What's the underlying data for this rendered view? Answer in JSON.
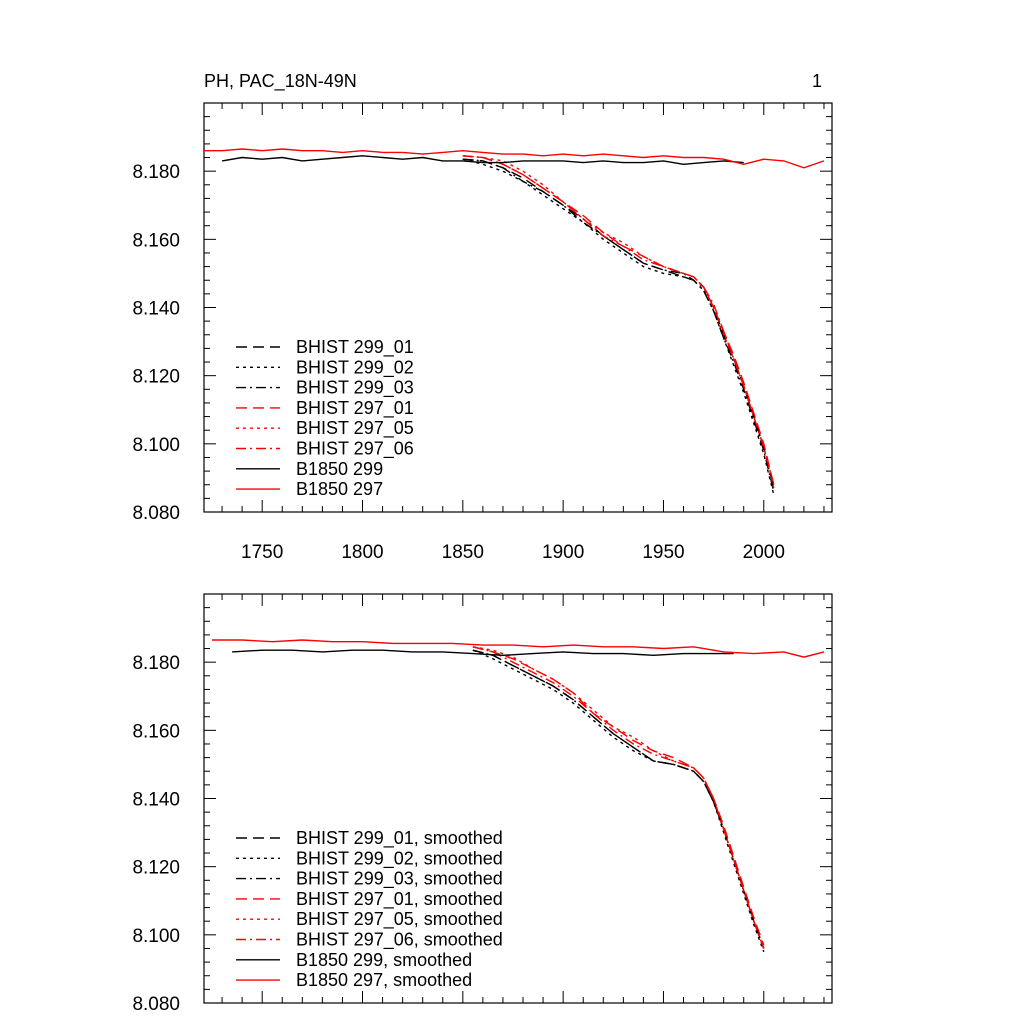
{
  "title": "PH, PAC_18N-49N",
  "page_number": "1",
  "chart_data": [
    {
      "type": "line",
      "panel": "top",
      "title": "PH, PAC_18N-49N",
      "xlabel": "",
      "ylabel": "",
      "xlim": [
        1721,
        2034
      ],
      "ylim": [
        8.08,
        8.2
      ],
      "x_ticks": [
        1750,
        1800,
        1850,
        1900,
        1950,
        2000
      ],
      "x_tick_labels": [
        "1750",
        "1800",
        "1850",
        "1900",
        "1950",
        "2000"
      ],
      "y_ticks": [
        8.08,
        8.1,
        8.12,
        8.14,
        8.16,
        8.18
      ],
      "y_tick_labels": [
        "8.080",
        "8.100",
        "8.120",
        "8.140",
        "8.160",
        "8.180"
      ],
      "legend_position": "bottom-left",
      "smoothed": false,
      "series": [
        {
          "name": "BHIST 299_01",
          "color": "#000000",
          "dash": "long-dash",
          "x": [
            1850,
            1860,
            1870,
            1880,
            1890,
            1900,
            1910,
            1920,
            1930,
            1940,
            1950,
            1960,
            1965,
            1970,
            1975,
            1980,
            1985,
            1990,
            1995,
            2000,
            2005
          ],
          "values": [
            8.1835,
            8.183,
            8.181,
            8.178,
            8.174,
            8.17,
            8.166,
            8.161,
            8.157,
            8.153,
            8.151,
            8.149,
            8.148,
            8.146,
            8.14,
            8.132,
            8.125,
            8.117,
            8.108,
            8.099,
            8.087
          ]
        },
        {
          "name": "BHIST 299_02",
          "color": "#000000",
          "dash": "dot",
          "x": [
            1850,
            1860,
            1870,
            1880,
            1890,
            1900,
            1910,
            1920,
            1930,
            1940,
            1950,
            1960,
            1965,
            1970,
            1975,
            1980,
            1985,
            1990,
            1995,
            2000,
            2005
          ],
          "values": [
            8.1835,
            8.182,
            8.18,
            8.177,
            8.173,
            8.169,
            8.165,
            8.16,
            8.156,
            8.152,
            8.15,
            8.149,
            8.148,
            8.145,
            8.139,
            8.131,
            8.123,
            8.115,
            8.106,
            8.097,
            8.085
          ]
        },
        {
          "name": "BHIST 299_03",
          "color": "#000000",
          "dash": "dash-dot",
          "x": [
            1850,
            1860,
            1870,
            1880,
            1890,
            1900,
            1910,
            1920,
            1930,
            1940,
            1950,
            1960,
            1965,
            1970,
            1975,
            1980,
            1985,
            1990,
            1995,
            2000,
            2005
          ],
          "values": [
            8.1835,
            8.183,
            8.181,
            8.177,
            8.174,
            8.17,
            8.165,
            8.161,
            8.157,
            8.153,
            8.151,
            8.15,
            8.148,
            8.145,
            8.139,
            8.131,
            8.124,
            8.116,
            8.107,
            8.098,
            8.086
          ]
        },
        {
          "name": "BHIST 297_01",
          "color": "#ff0000",
          "dash": "long-dash",
          "x": [
            1850,
            1860,
            1870,
            1880,
            1890,
            1900,
            1910,
            1920,
            1930,
            1940,
            1950,
            1960,
            1965,
            1970,
            1975,
            1980,
            1985,
            1990,
            1995,
            2000,
            2005
          ],
          "values": [
            8.1845,
            8.184,
            8.182,
            8.179,
            8.175,
            8.171,
            8.167,
            8.162,
            8.158,
            8.155,
            8.152,
            8.15,
            8.149,
            8.146,
            8.14,
            8.133,
            8.126,
            8.118,
            8.109,
            8.1,
            8.088
          ]
        },
        {
          "name": "BHIST 297_05",
          "color": "#ff0000",
          "dash": "dot",
          "x": [
            1850,
            1860,
            1870,
            1880,
            1890,
            1900,
            1910,
            1920,
            1930,
            1940,
            1950,
            1960,
            1965,
            1970,
            1975,
            1980,
            1985,
            1990,
            1995,
            2000,
            2005
          ],
          "values": [
            8.1845,
            8.184,
            8.183,
            8.18,
            8.176,
            8.171,
            8.166,
            8.162,
            8.159,
            8.155,
            8.152,
            8.15,
            8.149,
            8.146,
            8.14,
            8.132,
            8.125,
            8.117,
            8.108,
            8.099,
            8.087
          ]
        },
        {
          "name": "BHIST 297_06",
          "color": "#ff0000",
          "dash": "dash-dot",
          "x": [
            1850,
            1860,
            1870,
            1880,
            1890,
            1900,
            1910,
            1920,
            1930,
            1940,
            1950,
            1960,
            1965,
            1970,
            1975,
            1980,
            1985,
            1990,
            1995,
            2000,
            2005
          ],
          "values": [
            8.1845,
            8.184,
            8.182,
            8.179,
            8.175,
            8.171,
            8.166,
            8.161,
            8.158,
            8.154,
            8.152,
            8.15,
            8.149,
            8.146,
            8.141,
            8.133,
            8.125,
            8.117,
            8.108,
            8.099,
            8.088
          ]
        },
        {
          "name": "B1850 299",
          "color": "#000000",
          "dash": "solid",
          "x": [
            1730,
            1740,
            1750,
            1760,
            1770,
            1780,
            1790,
            1800,
            1810,
            1820,
            1830,
            1840,
            1850,
            1860,
            1870,
            1880,
            1890,
            1900,
            1910,
            1920,
            1930,
            1940,
            1950,
            1960,
            1970,
            1980,
            1990
          ],
          "values": [
            8.183,
            8.184,
            8.1835,
            8.184,
            8.183,
            8.1835,
            8.184,
            8.1845,
            8.184,
            8.1835,
            8.184,
            8.183,
            8.183,
            8.1825,
            8.1825,
            8.183,
            8.183,
            8.183,
            8.1825,
            8.183,
            8.1825,
            8.1825,
            8.183,
            8.182,
            8.1825,
            8.183,
            8.1825
          ]
        },
        {
          "name": "B1850 297",
          "color": "#ff0000",
          "dash": "solid",
          "x": [
            1721,
            1730,
            1740,
            1750,
            1760,
            1770,
            1780,
            1790,
            1800,
            1810,
            1820,
            1830,
            1840,
            1850,
            1860,
            1870,
            1880,
            1890,
            1900,
            1910,
            1920,
            1930,
            1940,
            1950,
            1960,
            1970,
            1980,
            1990,
            2000,
            2010,
            2020,
            2030
          ],
          "values": [
            8.186,
            8.186,
            8.1865,
            8.186,
            8.1865,
            8.186,
            8.186,
            8.1855,
            8.186,
            8.1855,
            8.1855,
            8.185,
            8.1855,
            8.186,
            8.1855,
            8.185,
            8.185,
            8.1845,
            8.185,
            8.1845,
            8.185,
            8.1845,
            8.184,
            8.1845,
            8.184,
            8.184,
            8.1835,
            8.182,
            8.1835,
            8.183,
            8.181,
            8.183
          ]
        }
      ]
    },
    {
      "type": "line",
      "panel": "bottom",
      "title": "",
      "xlabel": "",
      "ylabel": "",
      "xlim": [
        1721,
        2034
      ],
      "ylim": [
        8.08,
        8.2
      ],
      "x_ticks": [
        1750,
        1800,
        1850,
        1900,
        1950,
        2000
      ],
      "x_tick_labels": [],
      "y_ticks": [
        8.08,
        8.1,
        8.12,
        8.14,
        8.16,
        8.18
      ],
      "y_tick_labels": [
        "8.080",
        "8.100",
        "8.120",
        "8.140",
        "8.160",
        "8.180"
      ],
      "legend_position": "bottom-left",
      "smoothed": true,
      "series": [
        {
          "name": "BHIST 299_01, smoothed",
          "color": "#000000",
          "dash": "long-dash",
          "x": [
            1855,
            1865,
            1875,
            1885,
            1895,
            1905,
            1915,
            1925,
            1935,
            1945,
            1955,
            1965,
            1970,
            1975,
            1980,
            1985,
            1990,
            1995,
            2000
          ],
          "values": [
            8.1835,
            8.182,
            8.179,
            8.176,
            8.173,
            8.169,
            8.164,
            8.159,
            8.155,
            8.151,
            8.15,
            8.148,
            8.145,
            8.139,
            8.131,
            8.122,
            8.113,
            8.104,
            8.096
          ]
        },
        {
          "name": "BHIST 299_02, smoothed",
          "color": "#000000",
          "dash": "dot",
          "x": [
            1855,
            1865,
            1875,
            1885,
            1895,
            1905,
            1915,
            1925,
            1935,
            1945,
            1955,
            1965,
            1970,
            1975,
            1980,
            1985,
            1990,
            1995,
            2000
          ],
          "values": [
            8.1835,
            8.181,
            8.178,
            8.175,
            8.172,
            8.168,
            8.163,
            8.158,
            8.154,
            8.151,
            8.15,
            8.148,
            8.145,
            8.139,
            8.13,
            8.121,
            8.112,
            8.103,
            8.095
          ]
        },
        {
          "name": "BHIST 299_03, smoothed",
          "color": "#000000",
          "dash": "dash-dot",
          "x": [
            1855,
            1865,
            1875,
            1885,
            1895,
            1905,
            1915,
            1925,
            1935,
            1945,
            1955,
            1965,
            1970,
            1975,
            1980,
            1985,
            1990,
            1995,
            2000
          ],
          "values": [
            8.1835,
            8.182,
            8.179,
            8.176,
            8.173,
            8.169,
            8.164,
            8.159,
            8.155,
            8.151,
            8.15,
            8.148,
            8.145,
            8.139,
            8.131,
            8.122,
            8.113,
            8.104,
            8.096
          ]
        },
        {
          "name": "BHIST 297_01, smoothed",
          "color": "#ff0000",
          "dash": "long-dash",
          "x": [
            1855,
            1865,
            1875,
            1885,
            1895,
            1905,
            1915,
            1925,
            1935,
            1945,
            1955,
            1965,
            1970,
            1975,
            1980,
            1985,
            1990,
            1995,
            2000
          ],
          "values": [
            8.1845,
            8.183,
            8.181,
            8.178,
            8.175,
            8.171,
            8.165,
            8.161,
            8.157,
            8.154,
            8.152,
            8.149,
            8.146,
            8.14,
            8.132,
            8.123,
            8.114,
            8.105,
            8.097
          ]
        },
        {
          "name": "BHIST 297_05, smoothed",
          "color": "#ff0000",
          "dash": "dot",
          "x": [
            1855,
            1865,
            1875,
            1885,
            1895,
            1905,
            1915,
            1925,
            1935,
            1945,
            1955,
            1965,
            1970,
            1975,
            1980,
            1985,
            1990,
            1995,
            2000
          ],
          "values": [
            8.1845,
            8.1835,
            8.1815,
            8.178,
            8.175,
            8.171,
            8.166,
            8.161,
            8.158,
            8.154,
            8.151,
            8.149,
            8.146,
            8.14,
            8.131,
            8.122,
            8.113,
            8.104,
            8.096
          ]
        },
        {
          "name": "BHIST 297_06, smoothed",
          "color": "#ff0000",
          "dash": "dash-dot",
          "x": [
            1855,
            1865,
            1875,
            1885,
            1895,
            1905,
            1915,
            1925,
            1935,
            1945,
            1955,
            1965,
            1970,
            1975,
            1980,
            1985,
            1990,
            1995,
            2000
          ],
          "values": [
            8.1845,
            8.183,
            8.18,
            8.177,
            8.174,
            8.17,
            8.165,
            8.16,
            8.156,
            8.153,
            8.151,
            8.149,
            8.146,
            8.14,
            8.131,
            8.122,
            8.113,
            8.104,
            8.096
          ]
        },
        {
          "name": "B1850 299, smoothed",
          "color": "#000000",
          "dash": "solid",
          "x": [
            1735,
            1750,
            1765,
            1780,
            1795,
            1810,
            1825,
            1840,
            1855,
            1870,
            1885,
            1900,
            1915,
            1930,
            1945,
            1960,
            1975,
            1985
          ],
          "values": [
            8.183,
            8.1835,
            8.1835,
            8.183,
            8.1835,
            8.1835,
            8.183,
            8.183,
            8.1825,
            8.182,
            8.1825,
            8.183,
            8.1825,
            8.1825,
            8.182,
            8.1825,
            8.1825,
            8.1825
          ]
        },
        {
          "name": "B1850 297, smoothed",
          "color": "#ff0000",
          "dash": "solid",
          "x": [
            1725,
            1740,
            1755,
            1770,
            1785,
            1800,
            1815,
            1830,
            1845,
            1860,
            1875,
            1890,
            1905,
            1920,
            1935,
            1950,
            1965,
            1980,
            1995,
            2010,
            2020,
            2030
          ],
          "values": [
            8.1865,
            8.1865,
            8.186,
            8.1865,
            8.186,
            8.186,
            8.1855,
            8.1855,
            8.1855,
            8.185,
            8.185,
            8.1845,
            8.185,
            8.1845,
            8.1845,
            8.184,
            8.1845,
            8.183,
            8.1825,
            8.183,
            8.1815,
            8.183
          ]
        }
      ]
    }
  ]
}
